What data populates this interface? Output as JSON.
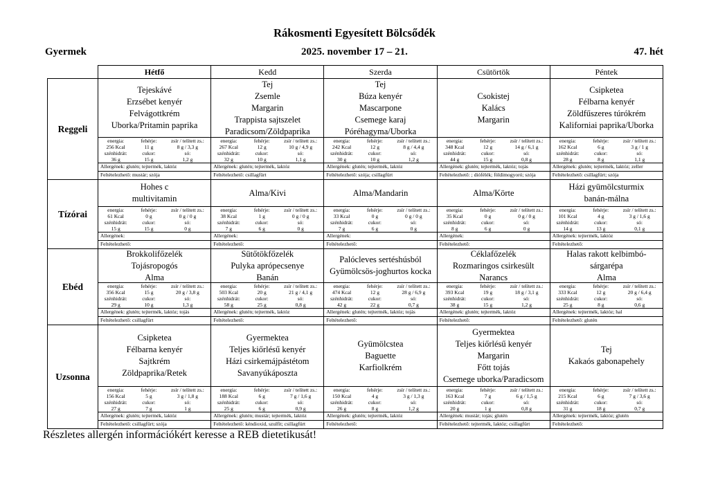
{
  "header": {
    "title": "Rákosmenti Egyesített Bölcsődék",
    "audience": "Gyermek",
    "date_range": "2025. november 17 – 21.",
    "week": "47. hét"
  },
  "table": {
    "day_headers": [
      "Hétfő",
      "Kedd",
      "Szerda",
      "Csütörtök",
      "Péntek"
    ],
    "nutrition_labels": {
      "energia": "energia:",
      "feherje": "fehérje:",
      "zsir": "zsír / telített zs.:",
      "szenhidrat": "szénhidrát:",
      "cukor": "cukor:",
      "so": "só:"
    },
    "meals": [
      {
        "label": "Reggeli",
        "days": [
          {
            "items": [
              "Tejeskávé",
              "Erzsébet kenyér",
              "Felvágottkrém",
              "Uborka/Pritamin paprika"
            ],
            "energia": "256 Kcal",
            "feherje": "11 g",
            "zsir": "8 g / 3,3 g",
            "szenhidrat": "36 g",
            "cukor": "15 g",
            "so": "1,2 g",
            "allergenek": "Allergének: glutén; tejtermék, laktóz",
            "feltetelezheto": "Feltételezhető: mustár; szója"
          },
          {
            "items": [
              "Tej",
              "Zsemle",
              "Margarin",
              "Trappista sajtszelet",
              "Paradicsom/Zöldpaprika"
            ],
            "energia": "267 Kcal",
            "feherje": "12 g",
            "zsir": "10 g / 4,9 g",
            "szenhidrat": "32 g",
            "cukor": "10 g",
            "so": "1,1 g",
            "allergenek": "Allergének: glutén; tejtermék, laktóz",
            "feltetelezheto": "Feltételezhető: csillagfürt"
          },
          {
            "items": [
              "Tej",
              "Búza kenyér",
              "Mascarpone",
              "Csemege karaj",
              "Póréhagyma/Uborka"
            ],
            "energia": "242 Kcal",
            "feherje": "12 g",
            "zsir": "8 g / 4,4 g",
            "szenhidrat": "30 g",
            "cukor": "10 g",
            "so": "1,2 g",
            "allergenek": "Allergének: glutén; tejtermék, laktóz",
            "feltetelezheto": "Feltételezhető: szója; csillagfürt"
          },
          {
            "items": [
              "Csokistej",
              "Kalács",
              "Margarin"
            ],
            "energia": "348 Kcal",
            "feherje": "12 g",
            "zsir": "14 g / 6,1 g",
            "szenhidrat": "44 g",
            "cukor": "15 g",
            "so": "0,8 g",
            "allergenek": "Allergének: glutén; tejtermék, laktóz; tojás",
            "feltetelezheto": "Feltételezhető: ; diófélék; földimogyoró; szója"
          },
          {
            "items": [
              "Csipketea",
              "Félbarna kenyér",
              "Zöldfűszeres túrókrém",
              "Kaliforniai paprika/Uborka"
            ],
            "energia": "162 Kcal",
            "feherje": "6 g",
            "zsir": "3 g / 1 g",
            "szenhidrat": "28 g",
            "cukor": "8 g",
            "so": "1,1 g",
            "allergenek": "Allergének: glutén; tejtermék, laktóz; zeller",
            "feltetelezheto": "Feltételezhető: csillagfürt; szója"
          }
        ]
      },
      {
        "label": "Tízórai",
        "days": [
          {
            "items": [
              "Hohes c",
              "multivitamin"
            ],
            "energia": "61 Kcal",
            "feherje": "0 g",
            "zsir": "0 g / 0 g",
            "szenhidrat": "15 g",
            "cukor": "15 g",
            "so": "0 g",
            "allergenek": "Allergének:",
            "feltetelezheto": "Feltételezhető:"
          },
          {
            "items": [
              "Alma/Kivi"
            ],
            "energia": "38 Kcal",
            "feherje": "1 g",
            "zsir": "0 g / 0 g",
            "szenhidrat": "7 g",
            "cukor": "6 g",
            "so": "0 g",
            "allergenek": "Allergének:",
            "feltetelezheto": "Feltételezhető:"
          },
          {
            "items": [
              "Alma/Mandarin"
            ],
            "energia": "33 Kcal",
            "feherje": "0 g",
            "zsir": "0 g / 0 g",
            "szenhidrat": "7 g",
            "cukor": "6 g",
            "so": "0 g",
            "allergenek": "Allergének:",
            "feltetelezheto": "Feltételezhető:"
          },
          {
            "items": [
              "Alma/Körte"
            ],
            "energia": "35 Kcal",
            "feherje": "0 g",
            "zsir": "0 g / 0 g",
            "szenhidrat": "8 g",
            "cukor": "6 g",
            "so": "0 g",
            "allergenek": "Allergének:",
            "feltetelezheto": "Feltételezhető:"
          },
          {
            "items": [
              "Házi gyümölcsturmix",
              "banán-málna"
            ],
            "energia": "101 Kcal",
            "feherje": "4 g",
            "zsir": "3 g / 1,6 g",
            "szenhidrat": "14 g",
            "cukor": "13 g",
            "so": "0,1 g",
            "allergenek": "Allergének: tejtermék, laktóz",
            "feltetelezheto": "Feltételezhető:"
          }
        ]
      },
      {
        "label": "Ebéd",
        "days": [
          {
            "items": [
              "Brokkolifőzelék",
              "Tojásropogós",
              "Alma"
            ],
            "energia": "356 Kcal",
            "feherje": "15 g",
            "zsir": "20 g / 3,8 g",
            "szenhidrat": "29 g",
            "cukor": "10 g",
            "so": "1,3 g",
            "allergenek": "Allergének: glutén; tejtermék, laktóz; tojás",
            "feltetelezheto": "Feltételezhető: csillagfürt"
          },
          {
            "items": [
              "Sütőtökfőzelék",
              "Pulyka aprópecsenye",
              "Banán"
            ],
            "energia": "503 Kcal",
            "feherje": "20 g",
            "zsir": "21 g / 4,1 g",
            "szenhidrat": "58 g",
            "cukor": "25 g",
            "so": "0,8 g",
            "allergenek": "Allergének: glutén; tejtermék, laktóz",
            "feltetelezheto": "Feltételezhető:"
          },
          {
            "items": [
              "Palócleves sertéshúsból",
              "Gyümölcsös-joghurtos kocka"
            ],
            "energia": "474 Kcal",
            "feherje": "12 g",
            "zsir": "28 g / 6,9 g",
            "szenhidrat": "42 g",
            "cukor": "22 g",
            "so": "0,7 g",
            "allergenek": "Allergének: glutén; tejtermék, laktóz; tojás",
            "feltetelezheto": "Feltételezhető:"
          },
          {
            "items": [
              "Céklafőzelék",
              "Rozmaringos csirkesült",
              "Narancs"
            ],
            "energia": "393 Kcal",
            "feherje": "19 g",
            "zsir": "18 g / 3,1 g",
            "szenhidrat": "38 g",
            "cukor": "15 g",
            "so": "1,2 g",
            "allergenek": "Allergének: glutén; tejtermék, laktóz",
            "feltetelezheto": "Feltételezhető:"
          },
          {
            "items": [
              "Halas rakott kelbimbó-sárgarépa",
              "Alma"
            ],
            "energia": "333 Kcal",
            "feherje": "12 g",
            "zsir": "20 g / 6,4 g",
            "szenhidrat": "25 g",
            "cukor": "8 g",
            "so": "0,6 g",
            "allergenek": "Allergének: tejtermék, laktóz; hal",
            "feltetelezheto": "Feltételezhető: glutén"
          }
        ]
      },
      {
        "label": "Uzsonna",
        "days": [
          {
            "items": [
              "Csipketea",
              "Félbarna kenyér",
              "Sajtkrém",
              "Zöldpaprika/Retek"
            ],
            "energia": "156 Kcal",
            "feherje": "5 g",
            "zsir": "3 g / 1,8 g",
            "szenhidrat": "27 g",
            "cukor": "7 g",
            "so": "1 g",
            "allergenek": "Allergének: glutén; tejtermék, laktóz",
            "feltetelezheto": "Feltételezhető: csillagfürt; szója"
          },
          {
            "items": [
              "Gyermektea",
              "Teljes kiőrlésű kenyér",
              "Házi csirkemájpástétom",
              "Savanyúkáposzta"
            ],
            "energia": "188 Kcal",
            "feherje": "6 g",
            "zsir": "7 g / 1,6 g",
            "szenhidrat": "25 g",
            "cukor": "6 g",
            "so": "0,9 g",
            "allergenek": "Allergének: glutén; mustár; tejtermék, laktóz",
            "feltetelezheto": "Feltételezhető: kéndioxid, szulfit; csillagfürt"
          },
          {
            "items": [
              "Gyümölcstea",
              "Baguette",
              "Karfiolkrém"
            ],
            "energia": "150 Kcal",
            "feherje": "4 g",
            "zsir": "3 g / 1,3 g",
            "szenhidrat": "26 g",
            "cukor": "8 g",
            "so": "1,2 g",
            "allergenek": "Allergének: glutén; tejtermék, laktóz",
            "feltetelezheto": "Feltételezhető:"
          },
          {
            "items": [
              "Gyermektea",
              "Teljes kiőrlésű kenyér",
              "Margarin",
              "Főtt tojás",
              "Csemege uborka/Paradicsom"
            ],
            "energia": "163 Kcal",
            "feherje": "7 g",
            "zsir": "6 g / 1,5 g",
            "szenhidrat": "20 g",
            "cukor": "1 g",
            "so": "0,8 g",
            "allergenek": "Allergének: mustár; tojás; glutén",
            "feltetelezheto": "Feltételezhető: tejtermék, laktóz; csillagfürt"
          },
          {
            "items": [
              "Tej",
              "Kakaós gabonapehely"
            ],
            "energia": "215 Kcal",
            "feherje": "6 g",
            "zsir": "7 g / 3,6 g",
            "szenhidrat": "31 g",
            "cukor": "18 g",
            "so": "0,7 g",
            "allergenek": "Allergének: tejtermék, laktóz; glutén",
            "feltetelezheto": "Feltételezhető:"
          }
        ]
      }
    ]
  },
  "footer": {
    "note": "Részletes allergén információkért keresse a REB dietetikusát!"
  }
}
